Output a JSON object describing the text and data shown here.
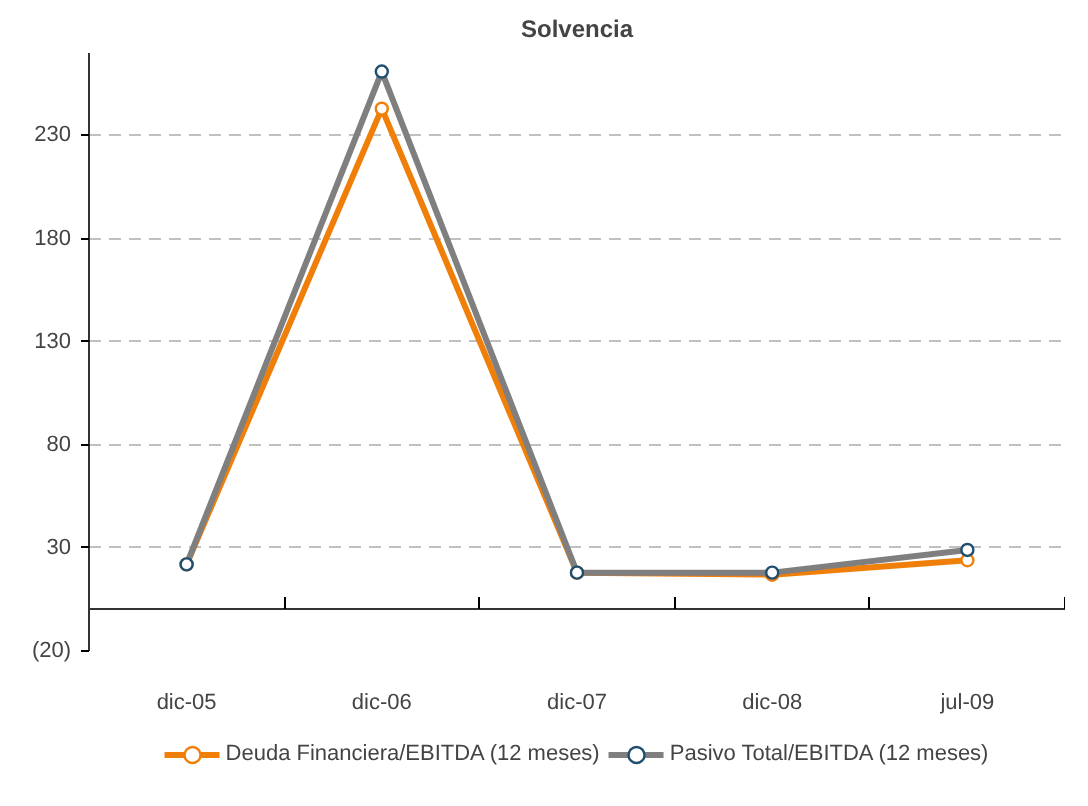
{
  "chart_data": {
    "type": "line",
    "title": "Solvencia",
    "categories": [
      "dic-05",
      "dic-06",
      "dic-07",
      "dic-08",
      "jul-09"
    ],
    "series": [
      {
        "name": "Deuda Financiera/EBITDA (12 meses)",
        "color": "#f07f09",
        "values": [
          22,
          243,
          18,
          17,
          24
        ]
      },
      {
        "name": "Pasivo Total/EBITDA (12 meses)",
        "color": "#7f7f7f",
        "values": [
          22,
          261,
          18,
          18,
          29
        ]
      }
    ],
    "ylim": [
      -20,
      270
    ],
    "yticks": [
      {
        "value": -20,
        "label": "(20)"
      },
      30,
      80,
      130,
      180,
      230
    ],
    "grid": "y",
    "legend": "bottom",
    "marker": "circle",
    "line_style": "solid"
  }
}
